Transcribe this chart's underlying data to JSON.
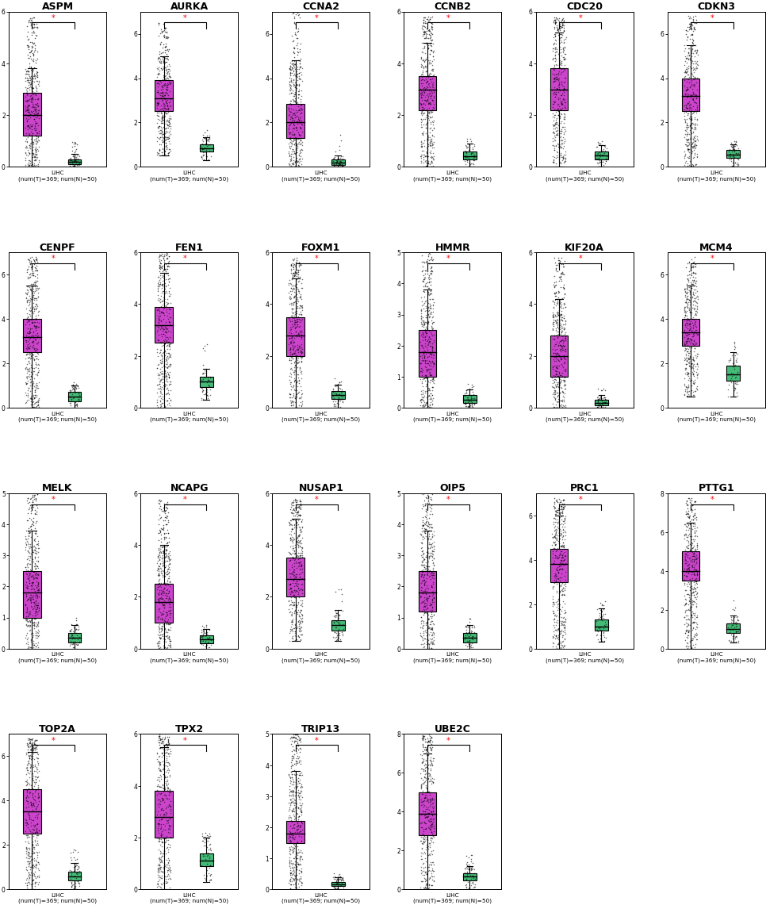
{
  "genes": [
    "ASPM",
    "AURKA",
    "CCNA2",
    "CCNB2",
    "CDC20",
    "CDKN3",
    "CENPF",
    "FEN1",
    "FOXM1",
    "HMMR",
    "KIF20A",
    "MCM4",
    "MELK",
    "NCAPG",
    "NUSAP1",
    "OIP5",
    "PRC1",
    "PTTG1",
    "TOP2A",
    "TPX2",
    "TRIP13",
    "UBE2C"
  ],
  "tumor_color": "#CC44CC",
  "normal_color": "#44BB77",
  "ylims": {
    "ASPM": [
      0,
      6
    ],
    "AURKA": [
      0,
      7
    ],
    "CCNA2": [
      0,
      7
    ],
    "CCNB2": [
      0,
      6
    ],
    "CDC20": [
      0,
      6
    ],
    "CDKN3": [
      0,
      7
    ],
    "CENPF": [
      0,
      7
    ],
    "FEN1": [
      0,
      6
    ],
    "FOXM1": [
      0,
      6
    ],
    "HMMR": [
      0,
      5
    ],
    "KIF20A": [
      0,
      6
    ],
    "MCM4": [
      0,
      7
    ],
    "MELK": [
      0,
      5
    ],
    "NCAPG": [
      0,
      6
    ],
    "NUSAP1": [
      0,
      6
    ],
    "OIP5": [
      0,
      5
    ],
    "PRC1": [
      0,
      7
    ],
    "PTTG1": [
      0,
      8
    ],
    "TOP2A": [
      0,
      7
    ],
    "TPX2": [
      0,
      6
    ],
    "TRIP13": [
      0,
      5
    ],
    "UBE2C": [
      0,
      8
    ]
  },
  "T_stats": {
    "ASPM": {
      "q1": 1.2,
      "med": 2.0,
      "q3": 2.85,
      "whislo": 0.0,
      "whishi": 3.8,
      "out_lo": [],
      "out_hi_n": 80,
      "out_hi_max": 5.8
    },
    "AURKA": {
      "q1": 2.5,
      "med": 3.1,
      "q3": 3.9,
      "whislo": 0.5,
      "whishi": 5.0,
      "out_lo": [],
      "out_hi_n": 50,
      "out_hi_max": 6.5
    },
    "CCNA2": {
      "q1": 1.3,
      "med": 2.0,
      "q3": 2.85,
      "whislo": 0.0,
      "whishi": 4.8,
      "out_lo": [],
      "out_hi_n": 40,
      "out_hi_max": 7.0
    },
    "CCNB2": {
      "q1": 2.2,
      "med": 3.0,
      "q3": 3.5,
      "whislo": 0.0,
      "whishi": 4.8,
      "out_lo": [],
      "out_hi_n": 70,
      "out_hi_max": 5.8
    },
    "CDC20": {
      "q1": 2.2,
      "med": 3.0,
      "q3": 3.8,
      "whislo": 0.0,
      "whishi": 5.2,
      "out_lo": [],
      "out_hi_n": 60,
      "out_hi_max": 5.8
    },
    "CDKN3": {
      "q1": 2.5,
      "med": 3.2,
      "q3": 4.0,
      "whislo": 0.0,
      "whishi": 5.5,
      "out_lo": [],
      "out_hi_n": 50,
      "out_hi_max": 6.8
    },
    "CENPF": {
      "q1": 2.5,
      "med": 3.2,
      "q3": 4.0,
      "whislo": 0.0,
      "whishi": 5.5,
      "out_lo": [],
      "out_hi_n": 60,
      "out_hi_max": 6.8
    },
    "FEN1": {
      "q1": 2.5,
      "med": 3.2,
      "q3": 3.9,
      "whislo": 0.0,
      "whishi": 5.2,
      "out_lo": [],
      "out_hi_n": 65,
      "out_hi_max": 6.2
    },
    "FOXM1": {
      "q1": 2.0,
      "med": 2.8,
      "q3": 3.5,
      "whislo": 0.0,
      "whishi": 5.0,
      "out_lo": [],
      "out_hi_n": 60,
      "out_hi_max": 5.8
    },
    "HMMR": {
      "q1": 1.0,
      "med": 1.8,
      "q3": 2.5,
      "whislo": 0.0,
      "whishi": 3.8,
      "out_lo": [],
      "out_hi_n": 75,
      "out_hi_max": 5.2
    },
    "KIF20A": {
      "q1": 1.2,
      "med": 2.0,
      "q3": 2.8,
      "whislo": 0.0,
      "whishi": 4.2,
      "out_lo": [],
      "out_hi_n": 65,
      "out_hi_max": 5.8
    },
    "MCM4": {
      "q1": 2.8,
      "med": 3.4,
      "q3": 4.0,
      "whislo": 0.5,
      "whishi": 5.5,
      "out_lo": [],
      "out_hi_n": 50,
      "out_hi_max": 6.8
    },
    "MELK": {
      "q1": 1.0,
      "med": 1.8,
      "q3": 2.5,
      "whislo": 0.0,
      "whishi": 3.8,
      "out_lo": [],
      "out_hi_n": 75,
      "out_hi_max": 5.2
    },
    "NCAPG": {
      "q1": 1.0,
      "med": 1.8,
      "q3": 2.5,
      "whislo": 0.0,
      "whishi": 4.0,
      "out_lo": [],
      "out_hi_n": 75,
      "out_hi_max": 5.8
    },
    "NUSAP1": {
      "q1": 2.0,
      "med": 2.7,
      "q3": 3.5,
      "whislo": 0.3,
      "whishi": 5.0,
      "out_lo": [],
      "out_hi_n": 60,
      "out_hi_max": 5.8
    },
    "OIP5": {
      "q1": 1.2,
      "med": 1.8,
      "q3": 2.5,
      "whislo": 0.0,
      "whishi": 3.8,
      "out_lo": [],
      "out_hi_n": 75,
      "out_hi_max": 5.0
    },
    "PRC1": {
      "q1": 3.0,
      "med": 3.8,
      "q3": 4.5,
      "whislo": 0.0,
      "whishi": 6.0,
      "out_lo": [],
      "out_hi_n": 60,
      "out_hi_max": 6.8
    },
    "PTTG1": {
      "q1": 3.5,
      "med": 4.0,
      "q3": 5.0,
      "whislo": 0.0,
      "whishi": 6.5,
      "out_lo": [],
      "out_hi_n": 55,
      "out_hi_max": 7.8
    },
    "TOP2A": {
      "q1": 2.5,
      "med": 3.5,
      "q3": 4.5,
      "whislo": 0.0,
      "whishi": 6.2,
      "out_lo": [],
      "out_hi_n": 60,
      "out_hi_max": 6.8
    },
    "TPX2": {
      "q1": 2.0,
      "med": 2.8,
      "q3": 3.8,
      "whislo": 0.0,
      "whishi": 5.5,
      "out_lo": [],
      "out_hi_n": 65,
      "out_hi_max": 6.2
    },
    "TRIP13": {
      "q1": 1.5,
      "med": 1.8,
      "q3": 2.2,
      "whislo": 0.0,
      "whishi": 3.8,
      "out_lo": [],
      "out_hi_n": 75,
      "out_hi_max": 5.0
    },
    "UBE2C": {
      "q1": 2.8,
      "med": 3.9,
      "q3": 5.0,
      "whislo": 0.0,
      "whishi": 7.0,
      "out_lo": [],
      "out_hi_n": 65,
      "out_hi_max": 8.3
    }
  },
  "N_stats": {
    "ASPM": {
      "q1": 0.1,
      "med": 0.2,
      "q3": 0.3,
      "whislo": 0.0,
      "whishi": 0.5,
      "out_lo": [],
      "out_hi_n": 12,
      "out_hi_max": 1.0
    },
    "AURKA": {
      "q1": 0.7,
      "med": 0.85,
      "q3": 1.0,
      "whislo": 0.3,
      "whishi": 1.35,
      "out_lo": [],
      "out_hi_n": 5,
      "out_hi_max": 1.7
    },
    "CCNA2": {
      "q1": 0.1,
      "med": 0.2,
      "q3": 0.35,
      "whislo": 0.0,
      "whishi": 0.5,
      "out_lo": [],
      "out_hi_n": 5,
      "out_hi_max": 1.5
    },
    "CCNB2": {
      "q1": 0.3,
      "med": 0.4,
      "q3": 0.6,
      "whislo": 0.0,
      "whishi": 0.9,
      "out_lo": [],
      "out_hi_n": 5,
      "out_hi_max": 1.2
    },
    "CDC20": {
      "q1": 0.3,
      "med": 0.45,
      "q3": 0.6,
      "whislo": 0.0,
      "whishi": 0.85,
      "out_lo": [],
      "out_hi_n": 5,
      "out_hi_max": 1.0
    },
    "CDKN3": {
      "q1": 0.4,
      "med": 0.55,
      "q3": 0.75,
      "whislo": 0.0,
      "whishi": 1.0,
      "out_lo": [],
      "out_hi_n": 5,
      "out_hi_max": 1.2
    },
    "CENPF": {
      "q1": 0.3,
      "med": 0.5,
      "q3": 0.7,
      "whislo": 0.0,
      "whishi": 1.0,
      "out_lo": [],
      "out_hi_n": 5,
      "out_hi_max": 1.2
    },
    "FEN1": {
      "q1": 0.8,
      "med": 1.0,
      "q3": 1.2,
      "whislo": 0.3,
      "whishi": 1.5,
      "out_lo": [],
      "out_hi_n": 5,
      "out_hi_max": 2.5
    },
    "FOXM1": {
      "q1": 0.35,
      "med": 0.5,
      "q3": 0.65,
      "whislo": 0.0,
      "whishi": 0.9,
      "out_lo": [],
      "out_hi_n": 5,
      "out_hi_max": 1.2
    },
    "HMMR": {
      "q1": 0.15,
      "med": 0.25,
      "q3": 0.4,
      "whislo": 0.0,
      "whishi": 0.6,
      "out_lo": [],
      "out_hi_n": 5,
      "out_hi_max": 0.8
    },
    "KIF20A": {
      "q1": 0.1,
      "med": 0.2,
      "q3": 0.3,
      "whislo": 0.0,
      "whishi": 0.5,
      "out_lo": [],
      "out_hi_n": 5,
      "out_hi_max": 0.8
    },
    "MCM4": {
      "q1": 1.2,
      "med": 1.5,
      "q3": 1.9,
      "whislo": 0.5,
      "whishi": 2.5,
      "out_lo": [],
      "out_hi_n": 5,
      "out_hi_max": 3.0
    },
    "MELK": {
      "q1": 0.2,
      "med": 0.35,
      "q3": 0.5,
      "whislo": 0.0,
      "whishi": 0.75,
      "out_lo": [],
      "out_hi_n": 5,
      "out_hi_max": 1.0
    },
    "NCAPG": {
      "q1": 0.2,
      "med": 0.35,
      "q3": 0.5,
      "whislo": 0.0,
      "whishi": 0.75,
      "out_lo": [],
      "out_hi_n": 5,
      "out_hi_max": 1.0
    },
    "NUSAP1": {
      "q1": 0.7,
      "med": 0.9,
      "q3": 1.1,
      "whislo": 0.3,
      "whishi": 1.5,
      "out_lo": [],
      "out_hi_n": 5,
      "out_hi_max": 2.5
    },
    "OIP5": {
      "q1": 0.2,
      "med": 0.35,
      "q3": 0.5,
      "whislo": 0.0,
      "whishi": 0.75,
      "out_lo": [],
      "out_hi_n": 5,
      "out_hi_max": 1.0
    },
    "PRC1": {
      "q1": 0.8,
      "med": 1.0,
      "q3": 1.3,
      "whislo": 0.3,
      "whishi": 1.8,
      "out_lo": [],
      "out_hi_n": 5,
      "out_hi_max": 2.2
    },
    "PTTG1": {
      "q1": 0.8,
      "med": 1.0,
      "q3": 1.3,
      "whislo": 0.3,
      "whishi": 1.7,
      "out_lo": [],
      "out_hi_n": 5,
      "out_hi_max": 2.5
    },
    "TOP2A": {
      "q1": 0.4,
      "med": 0.6,
      "q3": 0.8,
      "whislo": 0.0,
      "whishi": 1.2,
      "out_lo": [],
      "out_hi_n": 10,
      "out_hi_max": 1.8
    },
    "TPX2": {
      "q1": 0.9,
      "med": 1.1,
      "q3": 1.4,
      "whislo": 0.3,
      "whishi": 2.0,
      "out_lo": [],
      "out_hi_n": 8,
      "out_hi_max": 2.2
    },
    "TRIP13": {
      "q1": 0.1,
      "med": 0.15,
      "q3": 0.25,
      "whislo": 0.0,
      "whishi": 0.4,
      "out_lo": [],
      "out_hi_n": 5,
      "out_hi_max": 0.6
    },
    "UBE2C": {
      "q1": 0.45,
      "med": 0.65,
      "q3": 0.85,
      "whislo": 0.0,
      "whishi": 1.2,
      "out_lo": [],
      "out_hi_n": 12,
      "out_hi_max": 1.8
    }
  }
}
